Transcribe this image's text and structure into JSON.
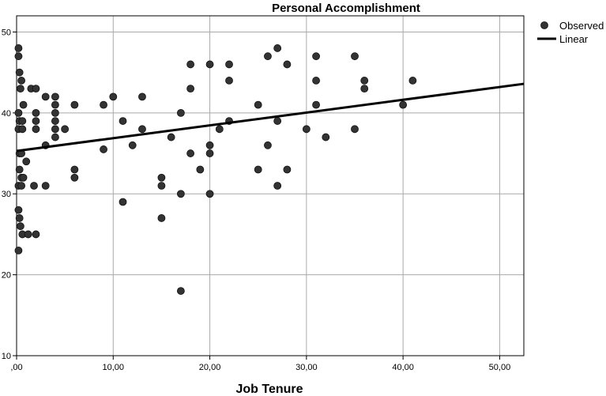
{
  "chart_data": {
    "type": "scatter",
    "title": "Personal Accomplishment",
    "xlabel": "Job Tenure",
    "ylabel": "",
    "xlim": [
      0,
      52.5
    ],
    "ylim": [
      10,
      52
    ],
    "grid": true,
    "legend": "top-right",
    "x_ticks": [
      ",00",
      "10,00",
      "20,00",
      "30,00",
      "40,00",
      "50,00"
    ],
    "x_tick_values": [
      0,
      10,
      20,
      30,
      40,
      50
    ],
    "y_ticks": [
      "10",
      "20",
      "30",
      "40",
      "50"
    ],
    "y_tick_values": [
      10,
      20,
      30,
      40,
      50
    ],
    "series": [
      {
        "name": "Observed",
        "kind": "points",
        "color": "#333333",
        "points": [
          [
            0.2,
            48
          ],
          [
            0.2,
            47
          ],
          [
            0.3,
            45
          ],
          [
            0.4,
            43
          ],
          [
            0.5,
            44
          ],
          [
            0.2,
            40
          ],
          [
            0.3,
            39
          ],
          [
            0.6,
            39
          ],
          [
            0.7,
            41
          ],
          [
            0.2,
            38
          ],
          [
            0.6,
            38
          ],
          [
            0.3,
            35
          ],
          [
            0.5,
            35
          ],
          [
            0.3,
            33
          ],
          [
            0.5,
            32
          ],
          [
            0.7,
            32
          ],
          [
            0.2,
            31
          ],
          [
            0.5,
            31
          ],
          [
            1.0,
            34
          ],
          [
            0.2,
            28
          ],
          [
            0.3,
            27
          ],
          [
            0.4,
            26
          ],
          [
            0.6,
            25
          ],
          [
            1.2,
            25
          ],
          [
            2.0,
            25
          ],
          [
            0.2,
            23
          ],
          [
            1.5,
            43
          ],
          [
            2.0,
            43
          ],
          [
            2.0,
            40
          ],
          [
            2.0,
            39
          ],
          [
            2.0,
            38
          ],
          [
            1.8,
            31
          ],
          [
            3.0,
            42
          ],
          [
            3.0,
            36
          ],
          [
            3.0,
            31
          ],
          [
            4.0,
            42
          ],
          [
            4.0,
            41
          ],
          [
            4.0,
            40
          ],
          [
            4.0,
            39
          ],
          [
            4.0,
            38
          ],
          [
            4.0,
            37
          ],
          [
            5.0,
            38
          ],
          [
            6.0,
            41
          ],
          [
            6.0,
            33
          ],
          [
            6.0,
            32
          ],
          [
            9.0,
            41
          ],
          [
            9.0,
            35.5
          ],
          [
            10.0,
            42
          ],
          [
            11.0,
            39
          ],
          [
            11.0,
            29
          ],
          [
            12.0,
            36
          ],
          [
            13.0,
            42
          ],
          [
            13.0,
            38
          ],
          [
            15.0,
            32
          ],
          [
            15.0,
            31
          ],
          [
            15.0,
            27
          ],
          [
            16.0,
            37
          ],
          [
            17.0,
            40
          ],
          [
            17.0,
            30
          ],
          [
            17.0,
            18
          ],
          [
            18.0,
            46
          ],
          [
            18.0,
            43
          ],
          [
            18.0,
            35
          ],
          [
            19.0,
            33
          ],
          [
            20.0,
            46
          ],
          [
            20.0,
            36
          ],
          [
            20.0,
            35
          ],
          [
            20.0,
            30
          ],
          [
            21.0,
            38
          ],
          [
            22.0,
            46
          ],
          [
            22.0,
            44
          ],
          [
            22.0,
            39
          ],
          [
            25.0,
            41
          ],
          [
            25.0,
            33
          ],
          [
            26.0,
            47
          ],
          [
            26.0,
            36
          ],
          [
            27.0,
            48
          ],
          [
            27.0,
            39
          ],
          [
            27.0,
            31
          ],
          [
            28.0,
            46
          ],
          [
            28.0,
            33
          ],
          [
            30.0,
            38
          ],
          [
            31.0,
            47
          ],
          [
            31.0,
            44
          ],
          [
            31.0,
            41
          ],
          [
            32.0,
            37
          ],
          [
            35.0,
            47
          ],
          [
            35.0,
            38
          ],
          [
            36.0,
            44
          ],
          [
            36.0,
            43
          ],
          [
            40.0,
            41
          ],
          [
            41.0,
            44
          ]
        ]
      },
      {
        "name": "Linear",
        "kind": "line",
        "color": "#000000",
        "intercept": 35.3,
        "slope": 0.158
      }
    ]
  }
}
